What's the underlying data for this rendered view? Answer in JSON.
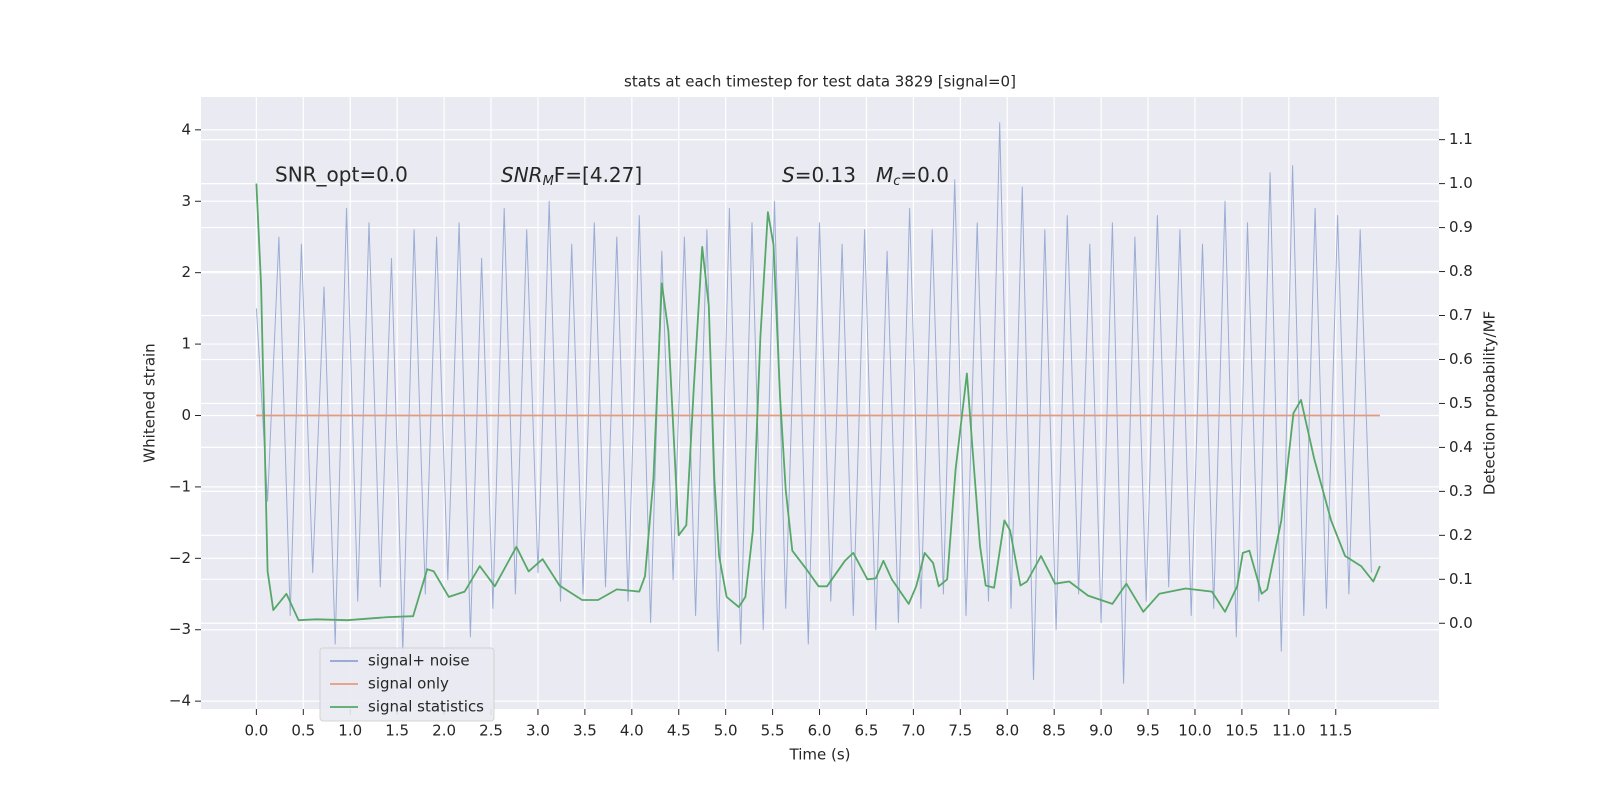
{
  "chart_data": {
    "type": "line",
    "title": "stats at each timestep for test data 3829 [signal=0]",
    "xlabel": "Time (s)",
    "ylabel": "Whitened strain",
    "y2label": "Detection probability/MF",
    "annotations": [
      {
        "text": "SNR_opt=0.0"
      },
      {
        "base": "SNR",
        "sub": "M",
        "rest": "F=[4.27]"
      },
      {
        "base": "S",
        "rest": "=0.13"
      },
      {
        "base": "M",
        "sub": "c",
        "rest": "=0.0"
      }
    ],
    "xlim": [
      -0.59,
      12.6
    ],
    "ylim": [
      -4.11,
      4.46
    ],
    "y2lim": [
      -0.195,
      1.197
    ],
    "xticks": [
      {
        "value": 0,
        "label": "0.0"
      },
      {
        "value": 0.5,
        "label": "0.5"
      },
      {
        "value": 1,
        "label": "1.0"
      },
      {
        "value": 1.5,
        "label": "1.5"
      },
      {
        "value": 2,
        "label": "2.0"
      },
      {
        "value": 2.5,
        "label": "2.5"
      },
      {
        "value": 3,
        "label": "3.0"
      },
      {
        "value": 3.5,
        "label": "3.5"
      },
      {
        "value": 4,
        "label": "4.0"
      },
      {
        "value": 4.5,
        "label": "4.5"
      },
      {
        "value": 5,
        "label": "5.0"
      },
      {
        "value": 5.5,
        "label": "5.5"
      },
      {
        "value": 6,
        "label": "6.0"
      },
      {
        "value": 6.5,
        "label": "6.5"
      },
      {
        "value": 7,
        "label": "7.0"
      },
      {
        "value": 7.5,
        "label": "7.5"
      },
      {
        "value": 8,
        "label": "8.0"
      },
      {
        "value": 8.5,
        "label": "8.5"
      },
      {
        "value": 9,
        "label": "9.0"
      },
      {
        "value": 9.5,
        "label": "9.5"
      },
      {
        "value": 10,
        "label": "10.0"
      },
      {
        "value": 10.5,
        "label": "10.5"
      },
      {
        "value": 11,
        "label": "11.0"
      },
      {
        "value": 11.5,
        "label": "11.5"
      }
    ],
    "yticks": [
      {
        "value": -4,
        "label": "−4"
      },
      {
        "value": -3,
        "label": "−3"
      },
      {
        "value": -2,
        "label": "−2"
      },
      {
        "value": -1,
        "label": "−1"
      },
      0,
      1,
      2,
      3,
      4
    ],
    "y2ticks": [
      {
        "value": 0,
        "label": "0.0"
      },
      {
        "value": 0.1,
        "label": "0.1"
      },
      {
        "value": 0.2,
        "label": "0.2"
      },
      {
        "value": 0.3,
        "label": "0.3"
      },
      {
        "value": 0.4,
        "label": "0.4"
      },
      {
        "value": 0.5,
        "label": "0.5"
      },
      {
        "value": 0.6,
        "label": "0.6"
      },
      {
        "value": 0.7,
        "label": "0.7"
      },
      {
        "value": 0.8,
        "label": "0.8"
      },
      {
        "value": 0.9,
        "label": "0.9"
      },
      {
        "value": 1,
        "label": "1.0"
      },
      {
        "value": 1.1,
        "label": "1.1"
      }
    ],
    "grid": true,
    "legend": "lower left",
    "series": [
      {
        "name": "signal+ noise",
        "color": "#8ea2cf",
        "x": [
          0,
          0.12,
          0.24,
          0.36,
          0.48,
          0.6,
          0.72,
          0.84,
          0.96,
          1.08,
          1.2,
          1.32,
          1.44,
          1.56,
          1.68,
          1.8,
          1.92,
          2.04,
          2.16,
          2.28,
          2.4,
          2.52,
          2.64,
          2.76,
          2.88,
          3,
          3.12,
          3.24,
          3.36,
          3.48,
          3.6,
          3.72,
          3.84,
          3.96,
          4.08,
          4.2,
          4.32,
          4.44,
          4.56,
          4.68,
          4.8,
          4.92,
          5.04,
          5.16,
          5.28,
          5.4,
          5.52,
          5.64,
          5.76,
          5.88,
          6,
          6.12,
          6.24,
          6.36,
          6.48,
          6.6,
          6.72,
          6.84,
          6.96,
          7.08,
          7.2,
          7.32,
          7.44,
          7.56,
          7.68,
          7.8,
          7.92,
          8.04,
          8.16,
          8.28,
          8.4,
          8.52,
          8.64,
          8.76,
          8.88,
          9,
          9.12,
          9.24,
          9.36,
          9.48,
          9.6,
          9.72,
          9.84,
          9.96,
          10.08,
          10.2,
          10.32,
          10.44,
          10.56,
          10.68,
          10.8,
          10.92,
          11.04,
          11.16,
          11.28,
          11.4,
          11.52,
          11.64,
          11.76,
          11.88
        ],
        "values": [
          1.5,
          -1.2,
          2.5,
          -2.8,
          2.4,
          -2.2,
          1.8,
          -3.2,
          2.9,
          -2.6,
          2.7,
          -2.4,
          2.2,
          -3.3,
          2.6,
          -2.5,
          2.5,
          -2.3,
          2.7,
          -3.1,
          2.2,
          -2.7,
          2.9,
          -2.5,
          2.6,
          -2.2,
          3.0,
          -2.6,
          2.4,
          -2.5,
          2.7,
          -2.4,
          2.5,
          -2.6,
          2.8,
          -2.9,
          2.3,
          -2.3,
          2.5,
          -2.8,
          2.6,
          -3.3,
          2.9,
          -3.2,
          2.7,
          -3.0,
          3.0,
          -2.7,
          2.5,
          -3.2,
          2.7,
          -2.6,
          2.4,
          -2.8,
          2.6,
          -3.0,
          2.3,
          -2.9,
          2.9,
          -2.7,
          2.6,
          -2.5,
          3.3,
          -2.8,
          2.7,
          -2.6,
          4.1,
          -2.7,
          3.2,
          -3.7,
          2.6,
          -3.0,
          2.8,
          -2.5,
          2.4,
          -2.9,
          2.7,
          -3.75,
          2.5,
          -2.6,
          2.8,
          -2.4,
          2.6,
          -2.8,
          2.4,
          -2.7,
          3.0,
          -3.1,
          2.7,
          -2.6,
          3.4,
          -3.3,
          3.5,
          -2.8,
          2.9,
          -2.7,
          2.8,
          -2.5,
          2.6,
          -2.2
        ]
      },
      {
        "name": "signal only",
        "color": "#e39a80",
        "x": [
          0,
          11.97
        ],
        "values": [
          0,
          0
        ]
      },
      {
        "name": "signal statistics",
        "color": "#55a868",
        "axis": "y2",
        "x": [
          0,
          0.05,
          0.12,
          0.18,
          0.32,
          0.45,
          0.64,
          0.97,
          1.4,
          1.67,
          1.82,
          1.89,
          2.05,
          2.22,
          2.38,
          2.54,
          2.77,
          2.9,
          3.05,
          3.23,
          3.47,
          3.64,
          3.84,
          4.08,
          4.14,
          4.23,
          4.32,
          4.39,
          4.5,
          4.58,
          4.66,
          4.75,
          4.82,
          4.88,
          4.93,
          5.01,
          5.14,
          5.21,
          5.29,
          5.37,
          5.45,
          5.51,
          5.58,
          5.64,
          5.71,
          5.86,
          5.99,
          6.08,
          6.27,
          6.36,
          6.51,
          6.6,
          6.68,
          6.77,
          6.95,
          7.03,
          7.12,
          7.21,
          7.27,
          7.36,
          7.45,
          7.57,
          7.63,
          7.71,
          7.77,
          7.86,
          7.97,
          8.03,
          8.14,
          8.21,
          8.36,
          8.51,
          8.66,
          8.86,
          9.12,
          9.27,
          9.45,
          9.62,
          9.9,
          10.18,
          10.32,
          10.45,
          10.51,
          10.58,
          10.71,
          10.77,
          10.92,
          11.05,
          11.13,
          11.27,
          11.45,
          11.6,
          11.77,
          11.9,
          11.97
        ],
        "values": [
          1.0,
          0.768,
          0.118,
          0.03,
          0.067,
          0.007,
          0.009,
          0.007,
          0.014,
          0.016,
          0.123,
          0.118,
          0.06,
          0.072,
          0.13,
          0.084,
          0.174,
          0.118,
          0.146,
          0.086,
          0.053,
          0.053,
          0.077,
          0.072,
          0.107,
          0.327,
          0.773,
          0.664,
          0.2,
          0.223,
          0.536,
          0.856,
          0.722,
          0.327,
          0.153,
          0.06,
          0.037,
          0.06,
          0.211,
          0.652,
          0.935,
          0.861,
          0.513,
          0.304,
          0.165,
          0.123,
          0.084,
          0.084,
          0.142,
          0.16,
          0.1,
          0.102,
          0.142,
          0.1,
          0.044,
          0.084,
          0.16,
          0.137,
          0.084,
          0.1,
          0.35,
          0.568,
          0.397,
          0.176,
          0.086,
          0.081,
          0.234,
          0.211,
          0.086,
          0.095,
          0.153,
          0.09,
          0.095,
          0.063,
          0.044,
          0.09,
          0.026,
          0.067,
          0.079,
          0.072,
          0.026,
          0.084,
          0.16,
          0.165,
          0.067,
          0.077,
          0.234,
          0.478,
          0.508,
          0.374,
          0.234,
          0.153,
          0.13,
          0.095,
          0.13
        ]
      }
    ]
  }
}
